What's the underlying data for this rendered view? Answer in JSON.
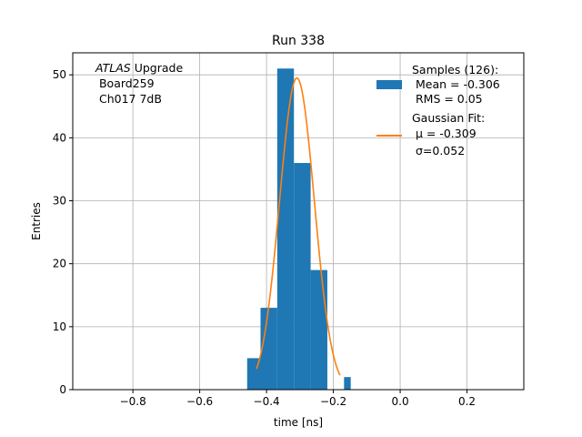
{
  "chart_data": {
    "type": "bar",
    "title": "Run 338",
    "xlabel": "time [ns]",
    "ylabel": "Entries",
    "xlim": [
      -0.98,
      0.37
    ],
    "ylim": [
      0,
      53.5
    ],
    "grid": true,
    "xticks": [
      -0.8,
      -0.6,
      -0.4,
      -0.2,
      0.0,
      0.2
    ],
    "xtick_labels": [
      "−0.8",
      "−0.6",
      "−0.4",
      "−0.2",
      "0.0",
      "0.2"
    ],
    "yticks": [
      0,
      10,
      20,
      30,
      40,
      50
    ],
    "ytick_labels": [
      "0",
      "10",
      "20",
      "30",
      "40",
      "50"
    ],
    "histogram": {
      "name": "Samples (126):",
      "color": "#1f77b4",
      "bins": [
        {
          "x0": -0.458,
          "x1": -0.418,
          "count": 5
        },
        {
          "x0": -0.418,
          "x1": -0.368,
          "count": 13
        },
        {
          "x0": -0.368,
          "x1": -0.318,
          "count": 51
        },
        {
          "x0": -0.318,
          "x1": -0.268,
          "count": 36
        },
        {
          "x0": -0.268,
          "x1": -0.218,
          "count": 19
        },
        {
          "x0": -0.218,
          "x1": -0.168,
          "count": 0
        },
        {
          "x0": -0.168,
          "x1": -0.148,
          "count": 2
        }
      ]
    },
    "fit": {
      "name": "Gaussian Fit:",
      "color": "#ff7f0e",
      "mu": -0.309,
      "sigma": 0.052,
      "amplitude": 49.5,
      "x_range": [
        -0.43,
        -0.18
      ]
    },
    "legend": {
      "position": "top-right",
      "entries": [
        {
          "lines": [
            "Samples (126):",
            " Mean = -0.306",
            " RMS = 0.05"
          ]
        },
        {
          "lines": [
            "Gaussian Fit:",
            " μ = -0.309",
            " σ=0.052"
          ]
        }
      ]
    },
    "annotation": {
      "position": "top-left",
      "italic": "ATLAS",
      "line1_rest": " Upgrade",
      "line2": " Board259",
      "line3": " Ch017 7dB"
    }
  }
}
